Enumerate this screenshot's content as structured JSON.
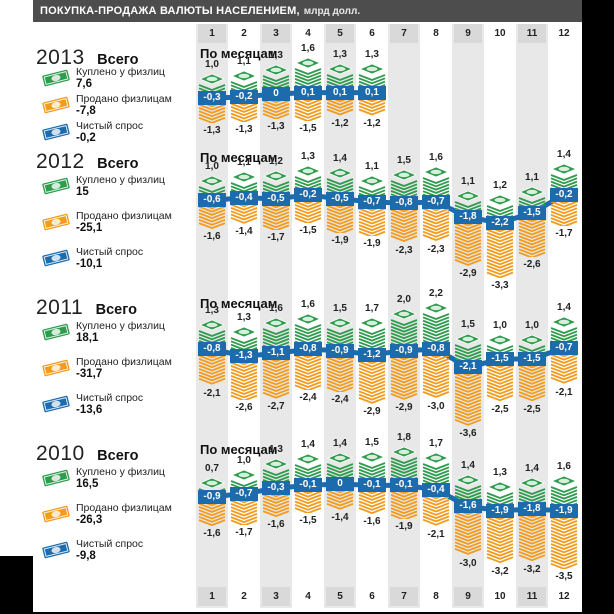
{
  "title": {
    "main": "ПОКУПКА-ПРОДАЖА ВАЛЮТЫ НАСЕЛЕНИЕМ,",
    "unit": "млрд долл."
  },
  "month_numbers": [
    "1",
    "2",
    "3",
    "4",
    "5",
    "6",
    "7",
    "8",
    "9",
    "10",
    "11",
    "12"
  ],
  "labels": {
    "monthly": "По месяцам",
    "total": "Всего",
    "bought": "Куплено у физлиц",
    "sold": "Продано физлицам",
    "net": "Чистый спрос"
  },
  "colors": {
    "bought": "#2e9b4d",
    "sold": "#f29b1d",
    "net": "#1c6bad",
    "title_bar": "#4d4d4d",
    "stripe": "#e8e8e8",
    "header_box": "#d9d9d9"
  },
  "chart_data": {
    "type": "pictorial-bar",
    "title": "ПОКУПКА-ПРОДАЖА ВАЛЮТЫ НАСЕЛЕНИЕМ, млрд долл.",
    "unit": "млрд долл.",
    "x": [
      1,
      2,
      3,
      4,
      5,
      6,
      7,
      8,
      9,
      10,
      11,
      12
    ],
    "years": [
      {
        "year": "2013",
        "totals": {
          "bought": "7,6",
          "sold": "-7,8",
          "net": "-0,2"
        },
        "monthly": {
          "bought": [
            "1,0",
            "1,1",
            "1,3",
            "1,6",
            "1,3",
            "1,3"
          ],
          "net": [
            "-0,3",
            "-0,2",
            "0",
            "0,1",
            "0,1",
            "0,1"
          ],
          "sold": [
            "-1,3",
            "-1,3",
            "-1,3",
            "-1,5",
            "-1,2",
            "-1,2"
          ]
        }
      },
      {
        "year": "2012",
        "totals": {
          "bought": "15",
          "sold": "-25,1",
          "net": "-10,1"
        },
        "monthly": {
          "bought": [
            "1,0",
            "1,1",
            "1,2",
            "1,3",
            "1,4",
            "1,1",
            "1,5",
            "1,6",
            "1,1",
            "1,2",
            "1,1",
            "1,4"
          ],
          "net": [
            "-0,6",
            "-0,4",
            "-0,5",
            "-0,2",
            "-0,5",
            "-0,7",
            "-0,8",
            "-0,7",
            "-1,8",
            "-2,2",
            "-1,5",
            "-0,2"
          ],
          "sold": [
            "-1,6",
            "-1,4",
            "-1,7",
            "-1,5",
            "-1,9",
            "-1,9",
            "-2,3",
            "-2,3",
            "-2,9",
            "-3,3",
            "-2,6",
            "-1,7"
          ]
        }
      },
      {
        "year": "2011",
        "totals": {
          "bought": "18,1",
          "sold": "-31,7",
          "net": "-13,6"
        },
        "monthly": {
          "bought": [
            "1,3",
            "1,3",
            "1,6",
            "1,6",
            "1,5",
            "1,7",
            "2,0",
            "2,2",
            "1,5",
            "1,0",
            "1,0",
            "1,4"
          ],
          "net": [
            "-0,8",
            "-1,3",
            "-1,1",
            "-0,8",
            "-0,9",
            "-1,2",
            "-0,9",
            "-0,8",
            "-2,1",
            "-1,5",
            "-1,5",
            "-0,7"
          ],
          "sold": [
            "-2,1",
            "-2,6",
            "-2,7",
            "-2,4",
            "-2,4",
            "-2,9",
            "-2,9",
            "-3,0",
            "-3,6",
            "-2,5",
            "-2,5",
            "-2,1"
          ]
        }
      },
      {
        "year": "2010",
        "totals": {
          "bought": "16,5",
          "sold": "-26,3",
          "net": "-9,8"
        },
        "monthly": {
          "bought": [
            "0,7",
            "1,0",
            "1,3",
            "1,4",
            "1,4",
            "1,5",
            "1,8",
            "1,7",
            "1,4",
            "1,3",
            "1,4",
            "1,6"
          ],
          "net": [
            "-0,9",
            "-0,7",
            "-0,3",
            "-0,1",
            "0",
            "-0,1",
            "-0,1",
            "-0,4",
            "-1,6",
            "-1,9",
            "-1,8",
            "-1,9"
          ],
          "sold": [
            "-1,6",
            "-1,7",
            "-1,6",
            "-1,5",
            "-1,4",
            "-1,6",
            "-1,9",
            "-2,1",
            "-3,0",
            "-3,2",
            "-3,2",
            "-3,5"
          ]
        }
      }
    ]
  }
}
